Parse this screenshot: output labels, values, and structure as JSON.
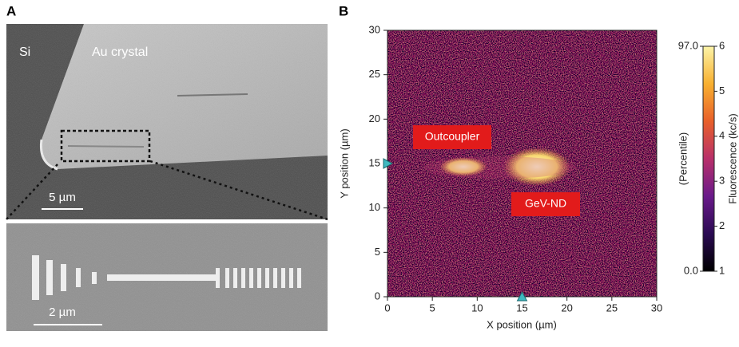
{
  "panels": {
    "a": {
      "label": "A",
      "region_labels": [
        "Si",
        "Au crystal"
      ],
      "scale_bars": [
        "5 µm",
        "2 µm"
      ]
    },
    "b": {
      "label": "B"
    }
  },
  "chart_data": {
    "type": "heatmap",
    "xlabel": "X position (µm)",
    "ylabel": "Y position (µm)",
    "xlim": [
      0,
      30
    ],
    "ylim": [
      0,
      30
    ],
    "xticks": [
      0,
      5,
      10,
      15,
      20,
      25,
      30
    ],
    "yticks": [
      0,
      5,
      10,
      15,
      20,
      25,
      30
    ],
    "markers": {
      "x": 15,
      "y": 15,
      "color": "#3fb8c0"
    },
    "annotations": [
      {
        "text": "Outcoupler"
      },
      {
        "text": "GeV-ND"
      }
    ],
    "colorbar": {
      "label": "Fluorescence (kc/s)",
      "clim": [
        1,
        6
      ],
      "ticks": [
        1,
        2,
        3,
        4,
        5,
        6
      ],
      "secondary_label": "(Percentile)",
      "secondary_ticks": [
        {
          "value": 0,
          "label": "0.0"
        },
        {
          "value": 97,
          "label": "97.0"
        }
      ],
      "secondary_lim": [
        0,
        97
      ],
      "colors": [
        "#000000",
        "#2a0a52",
        "#6a1a8a",
        "#b8306a",
        "#e8602a",
        "#f8b030",
        "#fcf4a8"
      ]
    }
  }
}
